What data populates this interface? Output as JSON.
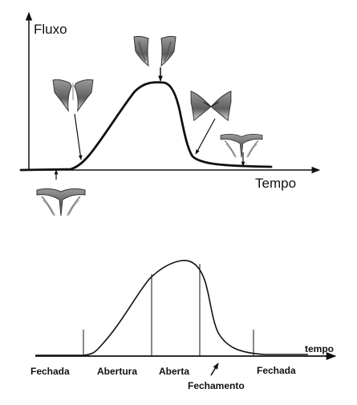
{
  "top_diagram": {
    "y_axis_label": "Fluxo",
    "x_axis_label": "Tempo",
    "valve_states": [
      {
        "name": "closed-start",
        "icon": "valve-closed-icon"
      },
      {
        "name": "opening",
        "icon": "valve-opening-icon"
      },
      {
        "name": "fully-open",
        "icon": "valve-open-icon"
      },
      {
        "name": "closing",
        "icon": "valve-closing-icon"
      },
      {
        "name": "closed-end",
        "icon": "valve-closed-icon"
      }
    ]
  },
  "bottom_diagram": {
    "axis_label": "tempo",
    "phases": [
      "Fechada",
      "Abertura",
      "Aberta",
      "Fechamento",
      "Fechada"
    ]
  },
  "colors": {
    "line": "#111111",
    "valve_fill": "#777777",
    "valve_edge": "#333333"
  }
}
